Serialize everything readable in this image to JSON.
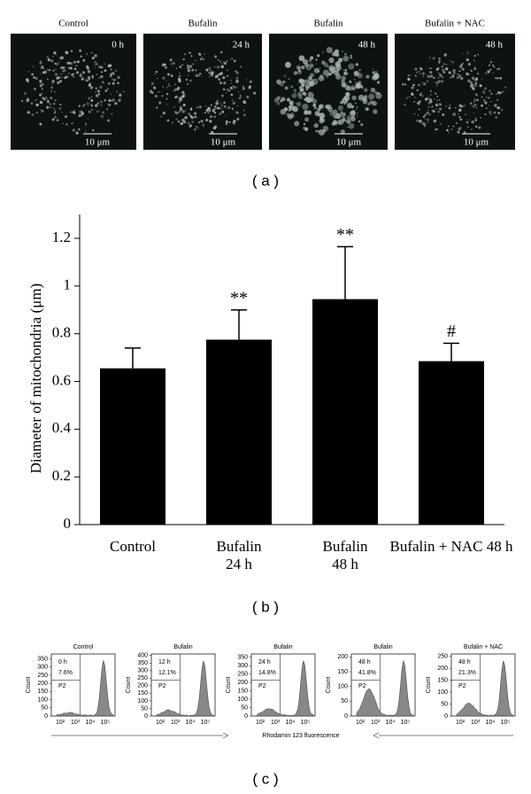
{
  "panel_a": {
    "label": "( a )",
    "images": [
      {
        "title": "Control",
        "time": "0 h",
        "scale": "10 μm"
      },
      {
        "title": "Bufalin",
        "time": "24 h",
        "scale": "10 μm"
      },
      {
        "title": "Bufalin",
        "time": "48 h",
        "scale": "10 μm"
      },
      {
        "title": "Bufalin + NAC",
        "time": "48 h",
        "scale": "10 μm"
      }
    ]
  },
  "chart_data": {
    "type": "bar",
    "label": "( b )",
    "y_label": "Diameter of mitochondria (μm)",
    "categories": [
      "Control",
      "Bufalin\n24 h",
      "Bufalin\n48 h",
      "Bufalin + NAC 48 h"
    ],
    "values": [
      0.655,
      0.775,
      0.945,
      0.685
    ],
    "errors": [
      0.085,
      0.125,
      0.22,
      0.075
    ],
    "significance": [
      null,
      "**",
      "**",
      "#"
    ],
    "color": "#000000",
    "ylim": [
      0,
      1.3
    ],
    "yticks": [
      0,
      0.2,
      0.4,
      0.6,
      0.8,
      1,
      1.2
    ]
  },
  "panel_c": {
    "label": "( c )",
    "x_label": "Rhodamin 123 fluorescence",
    "y_label": "Count",
    "xtick_labels": [
      "10²",
      "10³",
      "10⁴",
      "10⁵"
    ],
    "plots": [
      {
        "title": "Control",
        "time": "0 h",
        "percent": "7.6%",
        "gate": "P2",
        "ylim": [
          0,
          380
        ],
        "yticks": [
          0,
          50,
          100,
          150,
          200,
          250,
          300,
          350
        ]
      },
      {
        "title": "Bufalin",
        "time": "12 h",
        "percent": "12.1%",
        "gate": "P2",
        "ylim": [
          0,
          410
        ],
        "yticks": [
          0,
          50,
          100,
          150,
          200,
          250,
          300,
          350,
          400
        ]
      },
      {
        "title": "Bufalin",
        "time": "24 h",
        "percent": "14.8%",
        "gate": "P2",
        "ylim": [
          0,
          370
        ],
        "yticks": [
          0,
          50,
          100,
          150,
          200,
          250,
          300,
          350
        ]
      },
      {
        "title": "Bufalin",
        "time": "48 h",
        "percent": "41.8%",
        "gate": "P2",
        "ylim": [
          0,
          210
        ],
        "yticks": [
          0,
          50,
          100,
          150,
          200
        ]
      },
      {
        "title": "Bufalin + NAC",
        "time": "48 h",
        "percent": "21.3%",
        "gate": "P2",
        "ylim": [
          0,
          260
        ],
        "yticks": [
          0,
          50,
          100,
          150,
          200,
          250
        ]
      }
    ]
  }
}
